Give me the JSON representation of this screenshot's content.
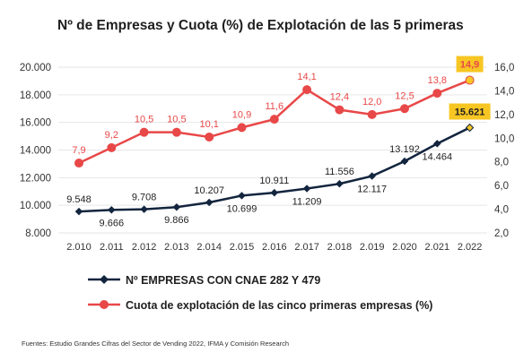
{
  "chart_data": {
    "type": "line",
    "title": "Nº de Empresas y Cuota (%) de Explotación de las 5 primeras",
    "categories": [
      "2.010",
      "2.011",
      "2.012",
      "2.013",
      "2.014",
      "2.015",
      "2.016",
      "2.017",
      "2.018",
      "2.019",
      "2.020",
      "2.021",
      "2.022"
    ],
    "left_axis": {
      "ylim": [
        8000,
        20000
      ],
      "ticks": [
        "8.000",
        "10.000",
        "12.000",
        "14.000",
        "16.000",
        "18.000",
        "20.000"
      ]
    },
    "right_axis": {
      "ylim": [
        2.0,
        16.0
      ],
      "ticks": [
        "2,0",
        "4,0",
        "6,0",
        "8,0",
        "10,0",
        "12,0",
        "14,0",
        "16,0"
      ]
    },
    "grid": true,
    "legend_position": "bottom",
    "series": [
      {
        "name": "Nº EMPRESAS CON CNAE  282 Y 479",
        "axis": "left",
        "color": "#13253e",
        "marker": "diamond",
        "values": [
          9548,
          9666,
          9708,
          9866,
          10207,
          10699,
          10911,
          11209,
          11556,
          12117,
          13192,
          14464,
          15621
        ],
        "labels": [
          "9.548",
          "9.666",
          "9.708",
          "9.866",
          "10.207",
          "10.699",
          "10.911",
          "11.209",
          "11.556",
          "12.117",
          "13.192",
          "14.464",
          "15.621"
        ],
        "label_pos": [
          "above",
          "below",
          "above",
          "below",
          "above",
          "below",
          "above",
          "below",
          "above",
          "below",
          "above",
          "below",
          "above"
        ]
      },
      {
        "name": "Cuota de explotación de las cinco primeras empresas (%)",
        "axis": "right",
        "color": "#e84848",
        "marker": "circle",
        "values": [
          7.9,
          9.2,
          10.5,
          10.5,
          10.1,
          10.9,
          11.6,
          14.1,
          12.4,
          12.0,
          12.5,
          13.8,
          14.9
        ],
        "labels": [
          "7,9",
          "9,2",
          "10,5",
          "10,5",
          "10,1",
          "10,9",
          "11,6",
          "14,1",
          "12,4",
          "12,0",
          "12,5",
          "13,8",
          "14,9"
        ]
      }
    ],
    "highlight_color": "#f7c623"
  },
  "source": "Fuentes: Estudio Grandes Cifras del Sector de Vending 2022, IFMA y Comisión Research"
}
